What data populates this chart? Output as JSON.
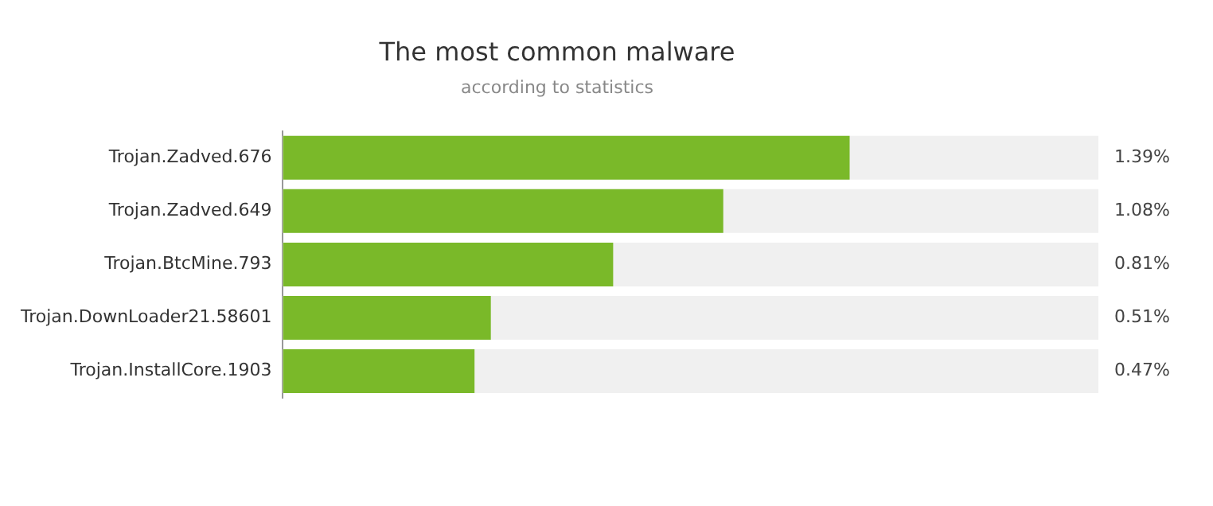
{
  "chart_data": {
    "type": "bar",
    "orientation": "horizontal",
    "title": "The most common malware",
    "subtitle": "according to statistics",
    "categories": [
      "Trojan.Zadved.676",
      "Trojan.Zadved.649",
      "Trojan.BtcMine.793",
      "Trojan.DownLoader21.58601",
      "Trojan.InstallCore.1903"
    ],
    "values": [
      1.39,
      1.08,
      0.81,
      0.51,
      0.47
    ],
    "value_labels": [
      "1.39%",
      "1.08%",
      "0.81%",
      "0.51%",
      "0.47%"
    ],
    "color": "#7ab929",
    "xlim": [
      0,
      2
    ],
    "legend": false
  }
}
